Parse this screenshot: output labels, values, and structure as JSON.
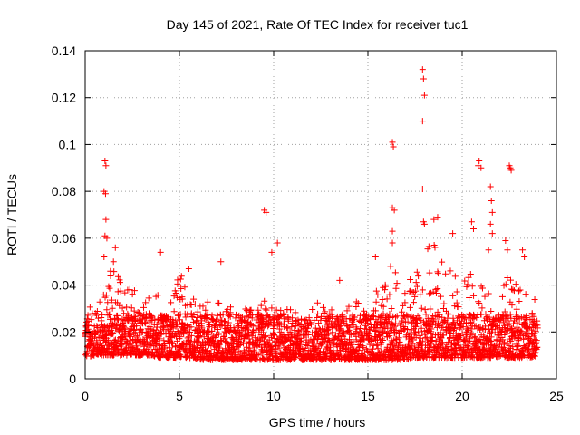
{
  "chart_data": {
    "type": "scatter",
    "title": "Day 145 of 2021, Rate Of TEC Index for receiver tuc1",
    "xlabel": "GPS time / hours",
    "ylabel": "ROTI / TECUs",
    "xlim": [
      0,
      25
    ],
    "ylim": [
      0,
      0.14
    ],
    "x_ticks": [
      "0",
      "5",
      "10",
      "15",
      "20",
      "25"
    ],
    "y_ticks": [
      "0",
      "0.02",
      "0.04",
      "0.06",
      "0.08",
      "0.1",
      "0.12",
      "0.14"
    ],
    "grid": true,
    "legend": "none",
    "marker": "plus",
    "color": "#ff0000",
    "envelope": {
      "x": [
        0,
        0.5,
        1,
        1.5,
        2,
        2.5,
        3,
        3.5,
        4,
        4.5,
        5,
        5.5,
        6,
        6.5,
        7,
        7.5,
        8,
        8.5,
        9,
        9.5,
        10,
        10.5,
        11,
        11.5,
        12,
        12.5,
        13,
        13.5,
        14,
        14.5,
        15,
        15.5,
        16,
        16.5,
        17,
        17.5,
        18,
        18.5,
        19,
        19.5,
        20,
        20.5,
        21,
        21.5,
        22,
        22.5,
        23,
        23.5,
        24
      ],
      "y_min": [
        0.005,
        0.006,
        0.006,
        0.006,
        0.006,
        0.006,
        0.006,
        0.006,
        0.005,
        0.005,
        0.005,
        0.005,
        0.004,
        0.004,
        0.004,
        0.004,
        0.004,
        0.004,
        0.004,
        0.004,
        0.004,
        0.004,
        0.004,
        0.004,
        0.004,
        0.004,
        0.004,
        0.004,
        0.004,
        0.004,
        0.004,
        0.004,
        0.004,
        0.004,
        0.004,
        0.005,
        0.005,
        0.005,
        0.005,
        0.005,
        0.005,
        0.005,
        0.005,
        0.005,
        0.005,
        0.005,
        0.005,
        0.005,
        0.005
      ],
      "y_max": [
        0.03,
        0.04,
        0.038,
        0.05,
        0.04,
        0.038,
        0.04,
        0.036,
        0.038,
        0.033,
        0.045,
        0.04,
        0.032,
        0.034,
        0.042,
        0.032,
        0.03,
        0.03,
        0.03,
        0.035,
        0.03,
        0.03,
        0.03,
        0.026,
        0.03,
        0.036,
        0.03,
        0.028,
        0.032,
        0.04,
        0.035,
        0.038,
        0.045,
        0.048,
        0.04,
        0.045,
        0.055,
        0.06,
        0.05,
        0.05,
        0.04,
        0.048,
        0.04,
        0.04,
        0.042,
        0.045,
        0.04,
        0.038,
        0.036
      ]
    },
    "outliers": [
      {
        "x": 1.05,
        "y": 0.093
      },
      {
        "x": 1.1,
        "y": 0.091
      },
      {
        "x": 1.0,
        "y": 0.08
      },
      {
        "x": 1.08,
        "y": 0.079
      },
      {
        "x": 1.1,
        "y": 0.068
      },
      {
        "x": 1.05,
        "y": 0.061
      },
      {
        "x": 1.15,
        "y": 0.06
      },
      {
        "x": 1.0,
        "y": 0.052
      },
      {
        "x": 1.6,
        "y": 0.056
      },
      {
        "x": 1.5,
        "y": 0.05
      },
      {
        "x": 4.0,
        "y": 0.054
      },
      {
        "x": 5.5,
        "y": 0.047
      },
      {
        "x": 7.2,
        "y": 0.05
      },
      {
        "x": 9.5,
        "y": 0.072
      },
      {
        "x": 9.6,
        "y": 0.071
      },
      {
        "x": 10.2,
        "y": 0.058
      },
      {
        "x": 9.9,
        "y": 0.054
      },
      {
        "x": 13.5,
        "y": 0.042
      },
      {
        "x": 15.4,
        "y": 0.052
      },
      {
        "x": 16.3,
        "y": 0.101
      },
      {
        "x": 16.35,
        "y": 0.099
      },
      {
        "x": 16.3,
        "y": 0.073
      },
      {
        "x": 16.4,
        "y": 0.072
      },
      {
        "x": 16.3,
        "y": 0.063
      },
      {
        "x": 16.3,
        "y": 0.058
      },
      {
        "x": 16.2,
        "y": 0.048
      },
      {
        "x": 17.9,
        "y": 0.132
      },
      {
        "x": 17.95,
        "y": 0.128
      },
      {
        "x": 18.0,
        "y": 0.121
      },
      {
        "x": 17.9,
        "y": 0.11
      },
      {
        "x": 17.9,
        "y": 0.081
      },
      {
        "x": 17.95,
        "y": 0.067
      },
      {
        "x": 18.0,
        "y": 0.066
      },
      {
        "x": 18.7,
        "y": 0.069
      },
      {
        "x": 18.5,
        "y": 0.068
      },
      {
        "x": 19.5,
        "y": 0.062
      },
      {
        "x": 20.5,
        "y": 0.067
      },
      {
        "x": 20.6,
        "y": 0.064
      },
      {
        "x": 20.9,
        "y": 0.093
      },
      {
        "x": 20.85,
        "y": 0.091
      },
      {
        "x": 21.0,
        "y": 0.09
      },
      {
        "x": 21.5,
        "y": 0.082
      },
      {
        "x": 21.55,
        "y": 0.076
      },
      {
        "x": 21.6,
        "y": 0.071
      },
      {
        "x": 21.5,
        "y": 0.066
      },
      {
        "x": 21.6,
        "y": 0.062
      },
      {
        "x": 21.4,
        "y": 0.055
      },
      {
        "x": 22.5,
        "y": 0.091
      },
      {
        "x": 22.55,
        "y": 0.09
      },
      {
        "x": 22.6,
        "y": 0.089
      },
      {
        "x": 22.3,
        "y": 0.059
      },
      {
        "x": 22.4,
        "y": 0.055
      },
      {
        "x": 23.2,
        "y": 0.055
      },
      {
        "x": 23.3,
        "y": 0.052
      }
    ]
  }
}
